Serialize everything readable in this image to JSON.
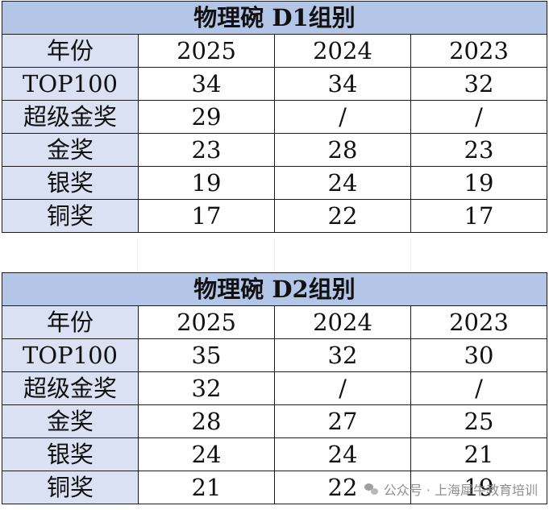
{
  "tables": [
    {
      "title": "物理碗 D1组别",
      "header": {
        "label": "年份",
        "years": [
          "2025",
          "2024",
          "2023"
        ]
      },
      "rows": [
        {
          "label": "TOP100",
          "values": [
            "34",
            "34",
            "32"
          ]
        },
        {
          "label": "超级金奖",
          "values": [
            "29",
            "/",
            "/"
          ]
        },
        {
          "label": "金奖",
          "values": [
            "23",
            "28",
            "23"
          ]
        },
        {
          "label": "银奖",
          "values": [
            "19",
            "24",
            "19"
          ]
        },
        {
          "label": "铜奖",
          "values": [
            "17",
            "22",
            "17"
          ]
        }
      ]
    },
    {
      "title": "物理碗 D2组别",
      "header": {
        "label": "年份",
        "years": [
          "2025",
          "2024",
          "2023"
        ]
      },
      "rows": [
        {
          "label": "TOP100",
          "values": [
            "35",
            "32",
            "30"
          ]
        },
        {
          "label": "超级金奖",
          "values": [
            "32",
            "/",
            "/"
          ]
        },
        {
          "label": "金奖",
          "values": [
            "28",
            "27",
            "25"
          ]
        },
        {
          "label": "银奖",
          "values": [
            "24",
            "24",
            "21"
          ]
        },
        {
          "label": "铜奖",
          "values": [
            "21",
            "22",
            "19"
          ]
        }
      ]
    }
  ],
  "watermark": {
    "icon": "wechat-icon",
    "text": "公众号 · 上海犀牛教育培训"
  }
}
